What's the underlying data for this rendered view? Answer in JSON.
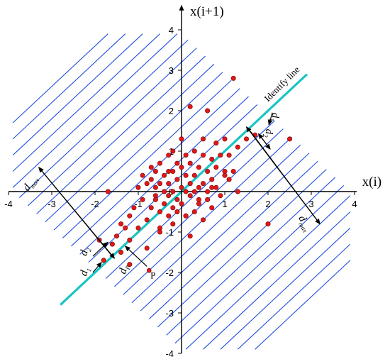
{
  "axes": {
    "x_title": "x(i)",
    "y_title": "x(i+1)",
    "x_ticks": [
      "-4",
      "-3",
      "-2",
      "-1",
      "0",
      "1",
      "2",
      "3",
      "4"
    ],
    "y_ticks": [
      "-4",
      "-3",
      "-2",
      "-1",
      "0",
      "1",
      "2",
      "3",
      "4"
    ]
  },
  "labels": {
    "identify_line": "Identify line",
    "point_p": "P",
    "d_max": {
      "main": "d",
      "sub": "max"
    },
    "d1": {
      "main": "d",
      "sub": "1"
    },
    "d2": {
      "main": "d",
      "sub": "2"
    },
    "dp": {
      "main": "d",
      "sub": "P"
    }
  },
  "colors": {
    "grid_lines": "#1f4fe0",
    "identify_line": "#19c4c4",
    "points_fill": "#e01818",
    "points_stroke": "#7a0000",
    "axes": "#000000"
  },
  "chart_data": {
    "type": "scatter",
    "xlim": [
      -4,
      4
    ],
    "ylim": [
      -4,
      4
    ],
    "x": [
      -1.8,
      -1.6,
      -1.5,
      -1.4,
      -1.3,
      -1.2,
      -1.2,
      -1.1,
      -1.0,
      -1.0,
      -0.9,
      -0.9,
      -0.8,
      -0.8,
      -0.7,
      -0.7,
      -0.7,
      -0.6,
      -0.6,
      -0.6,
      -0.5,
      -0.5,
      -0.5,
      -0.5,
      -0.4,
      -0.4,
      -0.4,
      -0.3,
      -0.3,
      -0.3,
      -0.3,
      -0.2,
      -0.2,
      -0.2,
      -0.2,
      -0.1,
      -0.1,
      -0.1,
      -0.1,
      0.0,
      0.0,
      0.0,
      0.0,
      0.1,
      0.1,
      0.1,
      0.1,
      0.2,
      0.2,
      0.2,
      0.2,
      0.3,
      0.3,
      0.3,
      0.3,
      0.4,
      0.4,
      0.4,
      0.5,
      0.5,
      0.5,
      0.5,
      0.6,
      0.6,
      0.6,
      0.7,
      0.7,
      0.7,
      0.8,
      0.8,
      0.8,
      0.9,
      0.9,
      1.0,
      1.0,
      1.1,
      1.1,
      1.2,
      1.3,
      1.3,
      1.5,
      1.7,
      2.0,
      2.5,
      1.2,
      -1.9,
      -1.7,
      -1.4,
      -1.2,
      -0.8,
      -0.5,
      -0.2,
      0.1,
      0.4,
      0.7,
      1.0,
      0.2,
      -0.3,
      0.6,
      -0.6
    ],
    "y": [
      -1.7,
      -1.3,
      -1.1,
      -1.5,
      -0.9,
      -1.2,
      -0.6,
      -0.4,
      -0.9,
      0.1,
      -0.2,
      0.4,
      0.2,
      -0.7,
      0.3,
      -0.4,
      0.6,
      0.1,
      -0.2,
      0.5,
      -0.5,
      0.2,
      0.7,
      -0.9,
      0.0,
      0.4,
      -0.3,
      0.9,
      0.2,
      -0.1,
      -0.6,
      0.5,
      0.0,
      -0.8,
      1.0,
      0.3,
      -0.2,
      0.7,
      -0.5,
      0.1,
      0.6,
      -0.3,
      1.3,
      0.0,
      0.4,
      -0.6,
      0.9,
      0.2,
      -0.1,
      0.7,
      -1.1,
      0.4,
      0.0,
      1.0,
      -0.5,
      0.6,
      0.1,
      -0.3,
      0.9,
      0.2,
      -0.7,
      1.3,
      0.5,
      -0.2,
      0.0,
      0.8,
      0.3,
      -0.4,
      1.2,
      0.1,
      0.6,
      0.9,
      -0.1,
      0.5,
      1.3,
      0.3,
      0.9,
      0.5,
      1.1,
      0.0,
      1.3,
      1.4,
      -0.8,
      1.3,
      2.8,
      -1.2,
      0.0,
      -0.8,
      -1.8,
      -1.4,
      -1.0,
      -0.4,
      -0.6,
      -0.2,
      0.1,
      0.4,
      2.1,
      0.5,
      2.0,
      -0.1
    ]
  }
}
